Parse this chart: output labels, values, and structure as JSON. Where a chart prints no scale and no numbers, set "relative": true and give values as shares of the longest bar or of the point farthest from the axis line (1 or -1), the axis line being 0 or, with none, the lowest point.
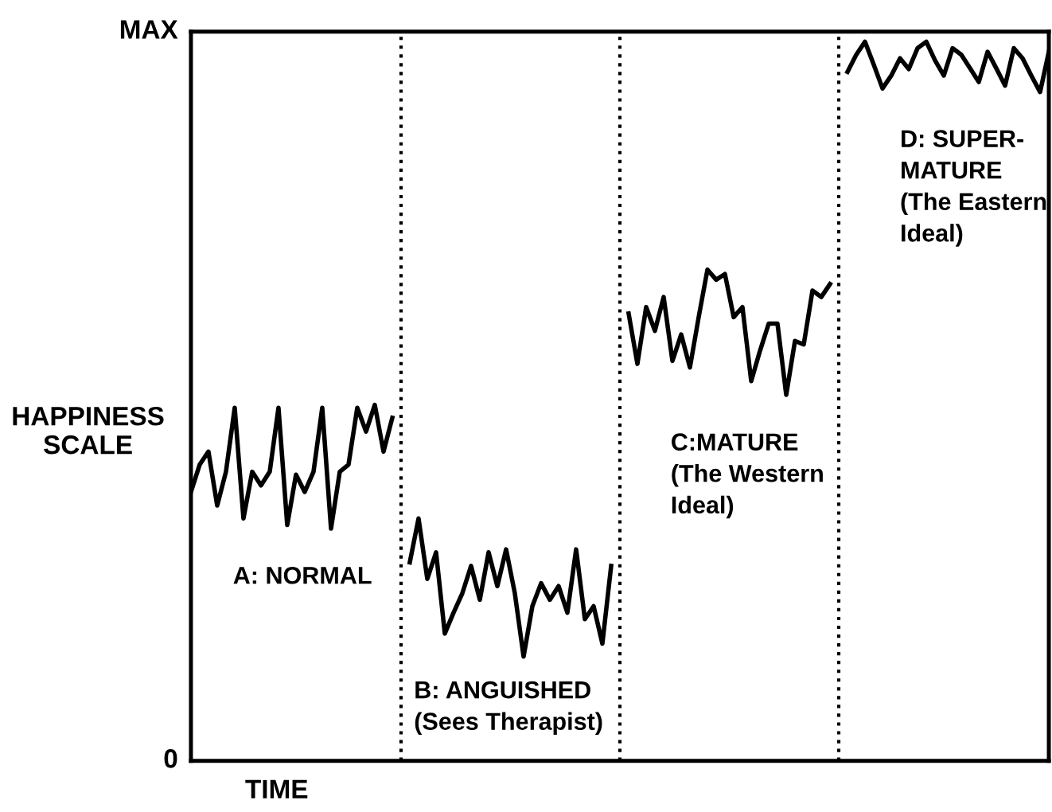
{
  "chart_data": {
    "type": "line",
    "xlabel": "TIME",
    "ylabel": "HAPPINESS\nSCALE",
    "categories": [
      null,
      null,
      null,
      null,
      null,
      null,
      null,
      null,
      null,
      null,
      null,
      null,
      null,
      null,
      null,
      null,
      null,
      null,
      null,
      null,
      null,
      null,
      null,
      null,
      null,
      null,
      null,
      null,
      null,
      null,
      null,
      null,
      null,
      null,
      null,
      null,
      null,
      null,
      null,
      null,
      null,
      null,
      null,
      null,
      null,
      null,
      null,
      null,
      null,
      null,
      null,
      null,
      null,
      null,
      null,
      null,
      null,
      null,
      null,
      null,
      null,
      null,
      null,
      null,
      null,
      null,
      null,
      null,
      null,
      null,
      null,
      null,
      null,
      null,
      null,
      null,
      null,
      null,
      null,
      null,
      null,
      null,
      null,
      null,
      null,
      null,
      null,
      null,
      null,
      null,
      null,
      null,
      null,
      null,
      null,
      null,
      null,
      null,
      null
    ],
    "relative": true,
    "grid": "x",
    "line_style": "solid",
    "marker": "none",
    "series": [
      {
        "color": "#000000",
        "values": [
          0.374,
          0.412,
          0.43,
          0.355,
          0.402,
          0.491,
          0.337,
          0.402,
          0.383,
          0.402,
          0.491,
          0.328,
          0.398,
          0.374,
          0.402,
          0.491,
          0.323,
          0.402,
          0.412,
          0.491,
          0.458,
          0.495,
          0.43,
          0.477,
          null,
          0.276,
          0.337,
          0.253,
          0.29,
          0.177,
          0.206,
          0.233,
          0.271,
          0.224,
          0.29,
          0.243,
          0.294,
          0.233,
          0.145,
          0.215,
          0.247,
          0.224,
          0.243,
          0.206,
          0.294,
          0.197,
          0.215,
          0.163,
          0.271,
          null,
          0.622,
          0.552,
          0.631,
          0.598,
          0.645,
          0.556,
          0.593,
          0.547,
          0.617,
          0.683,
          0.669,
          0.677,
          0.617,
          0.631,
          0.528,
          0.57,
          0.608,
          0.608,
          0.509,
          0.584,
          0.579,
          0.654,
          0.645,
          0.663,
          null,
          0.958,
          0.982,
          1,
          0.968,
          0.935,
          0.953,
          0.977,
          0.962,
          0.991,
          1,
          0.974,
          0.953,
          0.991,
          0.982,
          0.963,
          0.944,
          0.986,
          0.963,
          0.939,
          0.991,
          0.977,
          0.953,
          0.93,
          0.986
        ]
      }
    ],
    "annotations": [
      "A: NORMAL",
      "B: ANGUISHED\n(Sees Therapist)",
      "C:MATURE\n(The Western\nIdeal)",
      "D: SUPER-\nMATURE\n(The Eastern\nIdeal)",
      "MAX",
      "0"
    ]
  }
}
